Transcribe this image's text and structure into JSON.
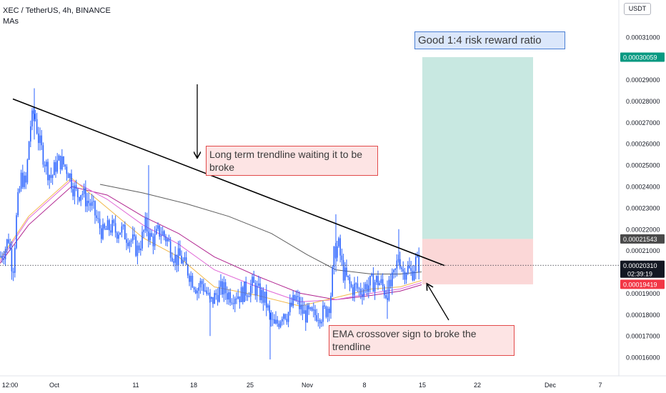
{
  "header": {
    "title": "XEC / TetherUS, 4h, BINANCE",
    "indicator": "MAs"
  },
  "currency_label": "USDT",
  "annotations": {
    "trendline_note": "Long term trendline waiting it to be broke",
    "ema_note": "EMA crossover sign to broke the trendline",
    "rr_note": "Good 1:4 risk reward ratio"
  },
  "price_tags": {
    "target": "0.00030059",
    "entry": "0.00021543",
    "current": "0.00020310",
    "countdown": "02:39:19",
    "stop": "0.00019419"
  },
  "colors": {
    "up": "#2962ff",
    "down": "#2962ff",
    "trendline": "#000000",
    "profit_zone": "#c8e8e1",
    "loss_zone": "#fbd7d7",
    "target_tag": "#089981",
    "entry_tag": "#4a4a4a",
    "stop_tag": "#f23645",
    "current_tag": "#131722",
    "ema_fast": "#f2b84b",
    "ema_mid": "#e066d6",
    "ema_slow": "#b0238f",
    "ma_long": "#5d5d5d"
  },
  "chart_data": {
    "type": "candlestick",
    "symbol": "XEC / TetherUS",
    "timeframe": "4h",
    "exchange": "BINANCE",
    "x_ticks": [
      "12:00",
      "Oct",
      "11",
      "18",
      "25",
      "Nov",
      "8",
      "15",
      "22",
      "Dec",
      "7"
    ],
    "y_ticks": [
      "0.00016000",
      "0.00017000",
      "0.00018000",
      "0.00019000",
      "0.00020000",
      "0.00021000",
      "0.00022000",
      "0.00023000",
      "0.00024000",
      "0.00025000",
      "0.00026000",
      "0.00027000",
      "0.00028000",
      "0.00029000",
      "0.00030000",
      "0.00031000"
    ],
    "ylim": [
      0.000154,
      0.000324
    ],
    "price_path": [
      [
        0,
        0.000207
      ],
      [
        6,
        0.00021
      ],
      [
        12,
        0.000216
      ],
      [
        18,
        0.0002
      ],
      [
        24,
        0.00023
      ],
      [
        30,
        0.000245
      ],
      [
        36,
        0.00024
      ],
      [
        42,
        0.000268
      ],
      [
        48,
        0.000275
      ],
      [
        54,
        0.000262
      ],
      [
        60,
        0.000255
      ],
      [
        66,
        0.000248
      ],
      [
        72,
        0.000244
      ],
      [
        78,
        0.00025
      ],
      [
        84,
        0.000252
      ],
      [
        90,
        0.00025
      ],
      [
        96,
        0.000247
      ],
      [
        102,
        0.00024
      ],
      [
        108,
        0.000236
      ],
      [
        114,
        0.000238
      ],
      [
        120,
        0.000234
      ],
      [
        126,
        0.000232
      ],
      [
        132,
        0.000228
      ],
      [
        138,
        0.000222
      ],
      [
        144,
        0.000218
      ],
      [
        150,
        0.00022
      ],
      [
        156,
        0.000221
      ],
      [
        162,
        0.000219
      ],
      [
        168,
        0.00022
      ],
      [
        174,
        0.000218
      ],
      [
        180,
        0.000216
      ],
      [
        186,
        0.000214
      ],
      [
        192,
        0.00021
      ],
      [
        198,
        0.000215
      ],
      [
        204,
        0.000222
      ],
      [
        210,
        0.000216
      ],
      [
        216,
        0.000215
      ],
      [
        222,
        0.000219
      ],
      [
        228,
        0.000218
      ],
      [
        234,
        0.000215
      ],
      [
        240,
        0.00021
      ],
      [
        246,
        0.000206
      ],
      [
        252,
        0.000207
      ],
      [
        258,
        0.000203
      ],
      [
        264,
        0.0002
      ],
      [
        270,
        0.000196
      ],
      [
        276,
        0.000192
      ],
      [
        282,
        0.000195
      ],
      [
        288,
        0.000191
      ],
      [
        294,
        0.000185
      ],
      [
        300,
        0.000188
      ],
      [
        306,
        0.000191
      ],
      [
        312,
        0.000192
      ],
      [
        318,
        0.00019
      ],
      [
        324,
        0.000189
      ],
      [
        330,
        0.00019
      ],
      [
        336,
        0.000189
      ],
      [
        342,
        0.000191
      ],
      [
        348,
        0.000192
      ],
      [
        354,
        0.000194
      ],
      [
        360,
        0.000191
      ],
      [
        366,
        0.000189
      ],
      [
        372,
        0.000186
      ],
      [
        378,
        0.000178
      ],
      [
        384,
        0.000174
      ],
      [
        390,
        0.000177
      ],
      [
        396,
        0.000182
      ],
      [
        402,
        0.00018
      ],
      [
        408,
        0.000184
      ],
      [
        414,
        0.000188
      ],
      [
        420,
        0.000183
      ],
      [
        426,
        0.00018
      ],
      [
        432,
        0.00018
      ],
      [
        438,
        0.000179
      ],
      [
        444,
        0.000181
      ],
      [
        450,
        0.00018
      ],
      [
        456,
        0.000182
      ],
      [
        462,
        0.000186
      ],
      [
        468,
        0.00021
      ],
      [
        474,
        0.000212
      ],
      [
        480,
        0.0002
      ],
      [
        486,
        0.000196
      ],
      [
        492,
        0.000192
      ],
      [
        498,
        0.000193
      ],
      [
        504,
        0.000191
      ],
      [
        510,
        0.000193
      ],
      [
        516,
        0.000194
      ],
      [
        522,
        0.000195
      ],
      [
        528,
        0.000196
      ],
      [
        534,
        0.000194
      ],
      [
        540,
        0.00019
      ],
      [
        546,
        0.000193
      ],
      [
        552,
        0.000198
      ],
      [
        558,
        0.000208
      ],
      [
        564,
        0.0002
      ],
      [
        570,
        0.000202
      ],
      [
        576,
        0.000199
      ],
      [
        582,
        0.000205
      ],
      [
        588,
        0.000203
      ]
    ],
    "trendline": {
      "from": [
        18,
        0.000281
      ],
      "to": [
        622,
        0.000203
      ]
    },
    "ema_fast": [
      [
        0,
        0.000206
      ],
      [
        40,
        0.000226
      ],
      [
        100,
        0.000244
      ],
      [
        150,
        0.00023
      ],
      [
        200,
        0.000216
      ],
      [
        250,
        0.000207
      ],
      [
        300,
        0.000193
      ],
      [
        360,
        0.000189
      ],
      [
        420,
        0.000184
      ],
      [
        470,
        0.000188
      ],
      [
        520,
        0.000192
      ],
      [
        560,
        0.000193
      ],
      [
        590,
        0.000196
      ]
    ],
    "ema_mid": [
      [
        0,
        0.000205
      ],
      [
        40,
        0.000225
      ],
      [
        100,
        0.000243
      ],
      [
        150,
        0.000234
      ],
      [
        200,
        0.000222
      ],
      [
        250,
        0.000213
      ],
      [
        300,
        0.000201
      ],
      [
        360,
        0.000193
      ],
      [
        420,
        0.000186
      ],
      [
        470,
        0.000187
      ],
      [
        520,
        0.00019
      ],
      [
        560,
        0.000192
      ],
      [
        590,
        0.000195
      ]
    ],
    "ema_slow": [
      [
        0,
        0.000204
      ],
      [
        40,
        0.000222
      ],
      [
        100,
        0.00024
      ],
      [
        150,
        0.000236
      ],
      [
        200,
        0.000226
      ],
      [
        250,
        0.000218
      ],
      [
        300,
        0.000207
      ],
      [
        360,
        0.000198
      ],
      [
        420,
        0.00019
      ],
      [
        470,
        0.000187
      ],
      [
        520,
        0.000189
      ],
      [
        560,
        0.000191
      ],
      [
        590,
        0.000194
      ]
    ],
    "ma_long": [
      [
        140,
        0.000241
      ],
      [
        200,
        0.000237
      ],
      [
        260,
        0.000232
      ],
      [
        320,
        0.000226
      ],
      [
        380,
        0.000218
      ],
      [
        430,
        0.000208
      ],
      [
        470,
        0.000201
      ],
      [
        520,
        0.000199
      ],
      [
        560,
        0.000199
      ],
      [
        590,
        0.0002
      ]
    ],
    "position": {
      "entry": 0.00021543,
      "target": 0.00030059,
      "stop": 0.00019419,
      "x_start": 591,
      "x_end": 746
    },
    "current_price": 0.0002031
  }
}
